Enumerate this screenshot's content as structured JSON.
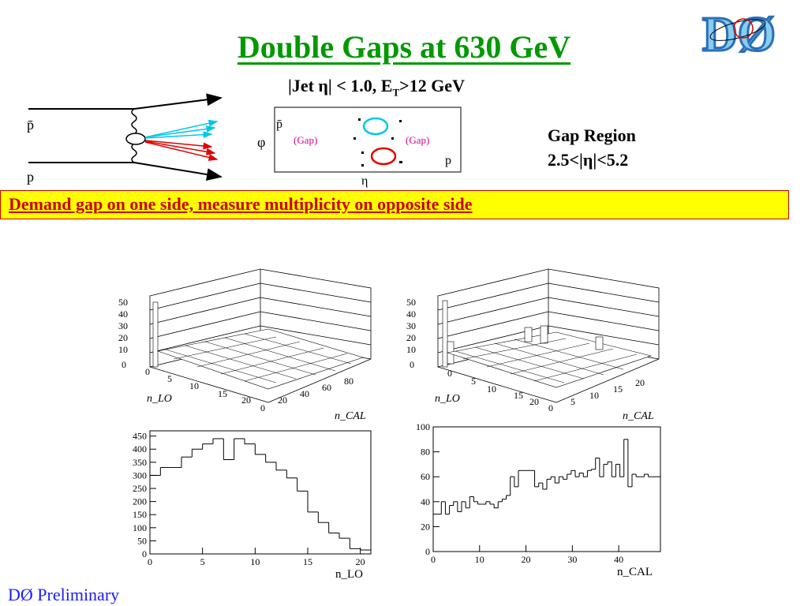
{
  "slide": {
    "title": "Double Gaps at 630 GeV",
    "cuts": {
      "pre": "|Jet η| < 1.0, E",
      "sub": "T",
      "post": ">12 GeV"
    },
    "gap_region": {
      "line1": "Gap Region",
      "line2": "2.5<|η|<5.2"
    },
    "banner": "Demand gap on one side,  measure multiplicity on opposite side",
    "footer": "DØ Preliminary",
    "logo_text": "DØ"
  },
  "diagram": {
    "pbar_label": "p̄",
    "p_label": "p",
    "phi_label": "φ",
    "eta_label": "η",
    "gap_left": "(Gap)",
    "gap_right": "(Gap)",
    "box_pbar": "p̄",
    "box_p": "p"
  },
  "colors": {
    "title": "#009900",
    "banner_bg": "#ffff00",
    "banner_text": "#cc0000",
    "footer": "#1a1aff",
    "cyan": "#00c8e8",
    "red": "#e00000",
    "magenta": "#e0008c"
  },
  "chart_data": [
    {
      "type": "3d-lego",
      "xlabel": "n_LO",
      "ylabel": "n_CAL",
      "z_ticks": [
        "50",
        "40",
        "30",
        "20",
        "10",
        "0"
      ],
      "x_ticks": [
        "0",
        "5",
        "10",
        "15",
        "20"
      ],
      "y_ticks": [
        "0",
        "20",
        "40",
        "60",
        "80"
      ]
    },
    {
      "type": "3d-lego",
      "xlabel": "n_LO",
      "ylabel": "n_CAL",
      "z_ticks": [
        "50",
        "40",
        "30",
        "20",
        "10",
        "0"
      ],
      "x_ticks": [
        "0",
        "5",
        "10",
        "15",
        "20"
      ],
      "y_ticks": [
        "0",
        "5",
        "10",
        "15",
        "20"
      ]
    },
    {
      "type": "histogram",
      "xlabel": "n_LO",
      "xlim": [
        0,
        21
      ],
      "ylim": [
        0,
        470
      ],
      "x_ticks": [
        "0",
        "5",
        "10",
        "15",
        "20"
      ],
      "y_ticks": [
        "0",
        "50",
        "100",
        "150",
        "200",
        "250",
        "300",
        "350",
        "400",
        "450"
      ],
      "values": [
        300,
        330,
        330,
        370,
        400,
        420,
        440,
        360,
        440,
        420,
        380,
        350,
        320,
        290,
        240,
        160,
        120,
        80,
        60,
        20,
        15
      ]
    },
    {
      "type": "histogram",
      "xlabel": "n_CAL",
      "xlim": [
        0,
        49
      ],
      "ylim": [
        0,
        100
      ],
      "x_ticks": [
        "0",
        "10",
        "20",
        "30",
        "40"
      ],
      "y_ticks": [
        "0",
        "20",
        "40",
        "60",
        "80",
        "100"
      ],
      "values": [
        30,
        30,
        40,
        30,
        37,
        40,
        32,
        40,
        35,
        44,
        40,
        38,
        38,
        40,
        38,
        35,
        40,
        42,
        45,
        60,
        52,
        65,
        65,
        65,
        65,
        52,
        55,
        50,
        58,
        60,
        55,
        60,
        58,
        62,
        65,
        60,
        63,
        60,
        65,
        66,
        75,
        60,
        70,
        72,
        60,
        70,
        60,
        90,
        52,
        62,
        60,
        60,
        62,
        60,
        60,
        60
      ]
    }
  ]
}
